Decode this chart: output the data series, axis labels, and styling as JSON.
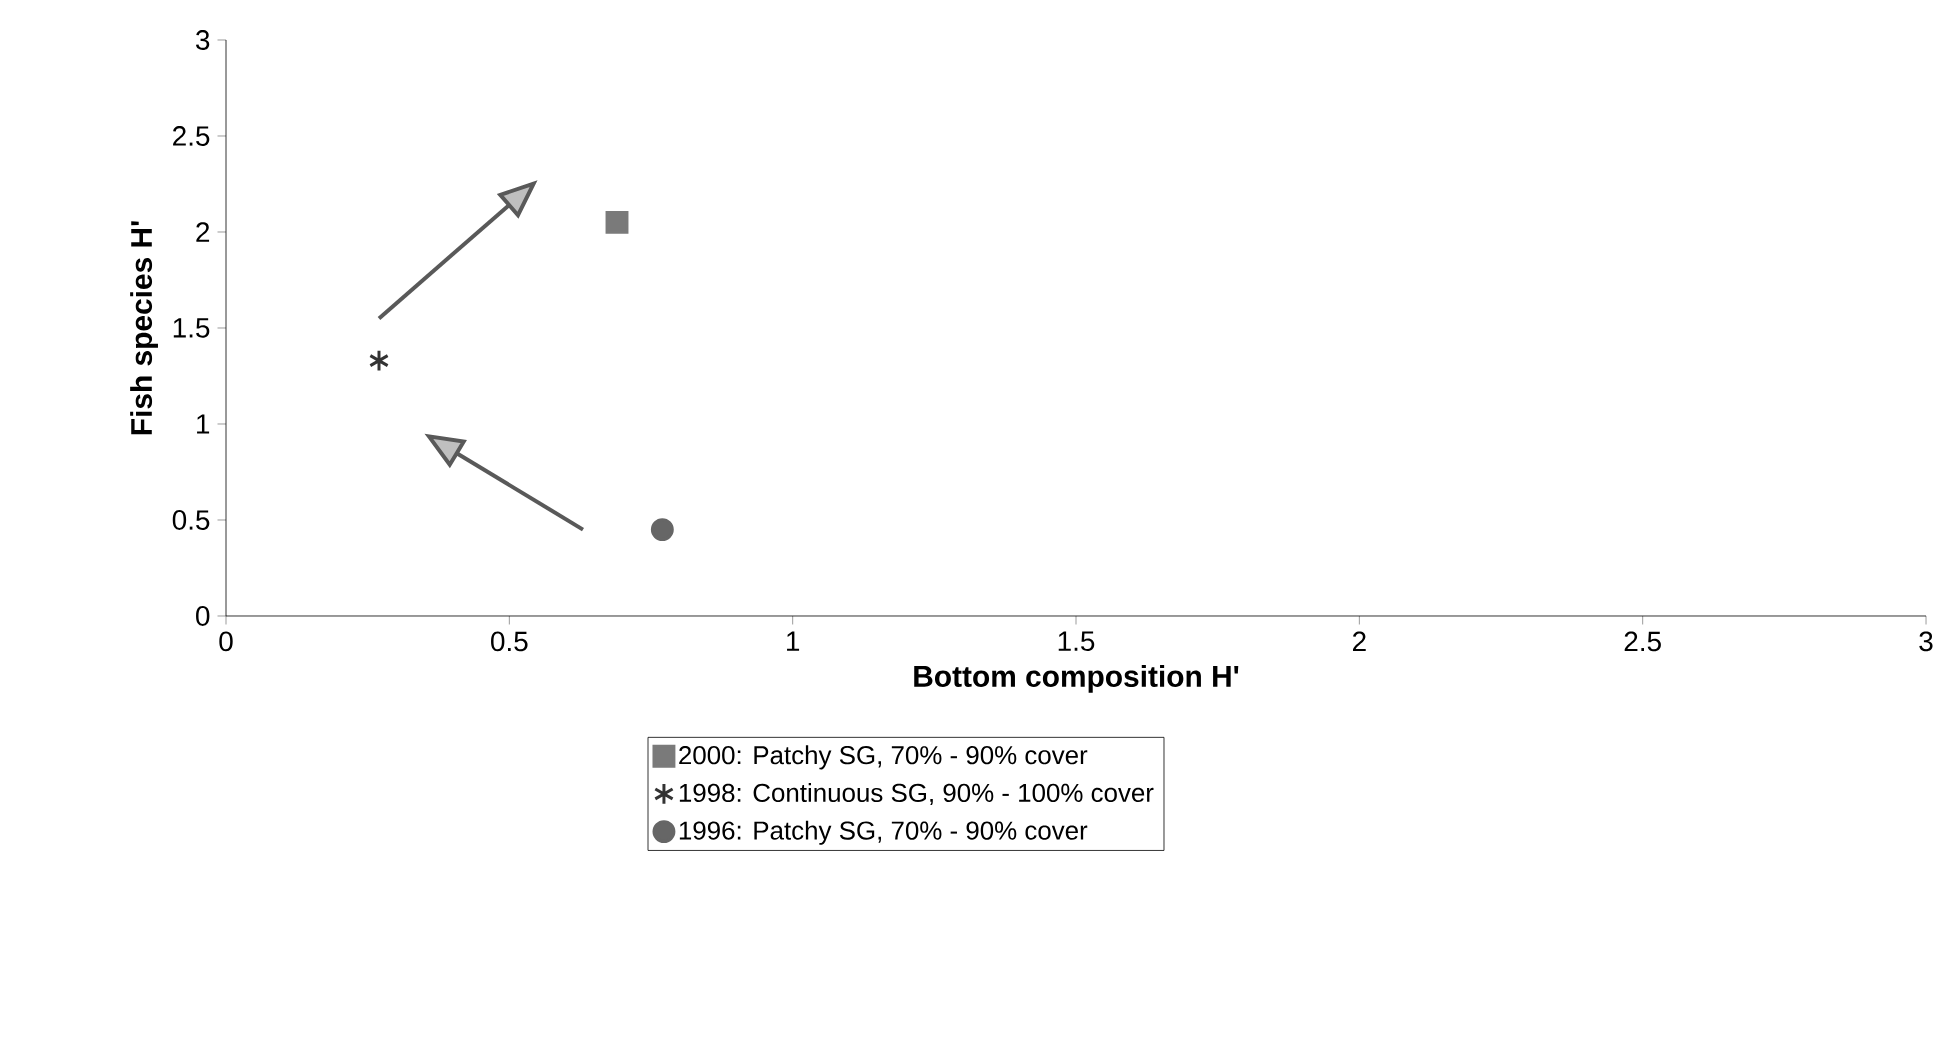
{
  "chart_data": {
    "type": "scatter",
    "xlabel": "Bottom composition H'",
    "ylabel": "Fish species H'",
    "xlim": [
      0,
      3
    ],
    "xticks": [
      0,
      0.5,
      1,
      1.5,
      2,
      2.5,
      3
    ],
    "ylim": [
      0,
      3
    ],
    "yticks": [
      0,
      0.5,
      1,
      1.5,
      2,
      2.5,
      3
    ],
    "grid": false,
    "legend": "bottom",
    "series": [
      {
        "name": "2000: Patchy SG, 70% - 90% cover",
        "color": "#7a7a7a",
        "marker": "square",
        "x": [
          0.69
        ],
        "values": [
          2.05
        ]
      },
      {
        "name": "1998: Continuous SG, 90% - 100% cover",
        "color": "#333333",
        "marker": "cross",
        "x": [
          0.27
        ],
        "values": [
          1.33
        ]
      },
      {
        "name": "1996: Patchy SG, 70% - 90% cover",
        "color": "#666666",
        "marker": "circle",
        "x": [
          0.77
        ],
        "values": [
          0.45
        ]
      }
    ]
  }
}
